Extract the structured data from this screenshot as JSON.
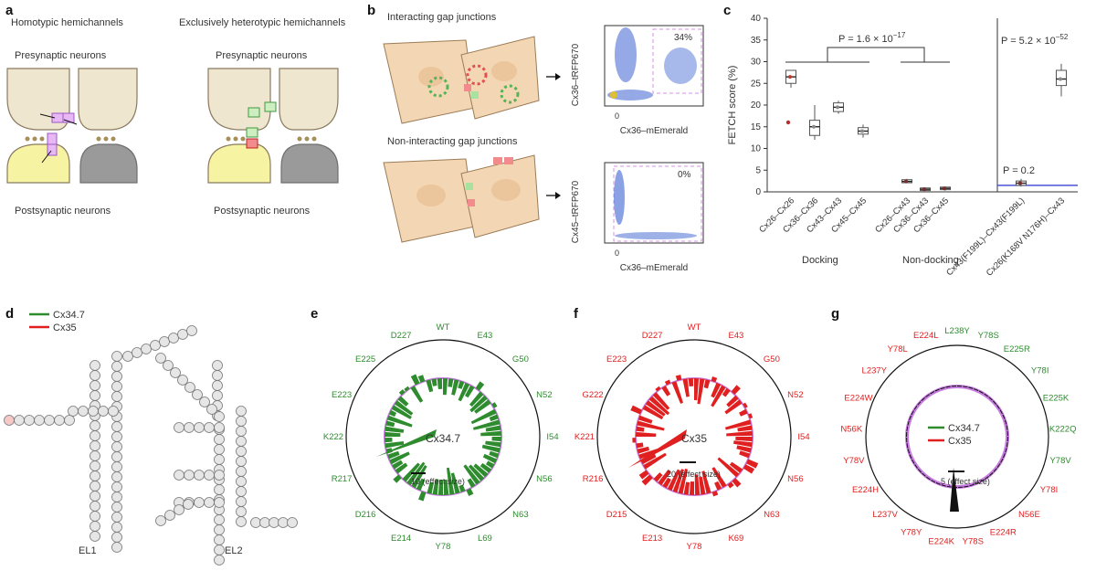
{
  "panels": {
    "a": {
      "letter": "a",
      "left_title": "Homotypic hemichannels",
      "right_title": "Exclusively heterotypic hemichannels",
      "presynaptic_left": "Presynaptic neurons",
      "presynaptic_right": "Presynaptic neurons",
      "postsynaptic_left": "Postsynaptic neurons",
      "postsynaptic_right": "Postsynaptic neurons"
    },
    "b": {
      "letter": "b",
      "top_title": "Interacting gap junctions",
      "bottom_title": "Non-interacting gap junctions",
      "top_ylabel": "Cx36–tRFP670",
      "top_xlabel": "Cx36–mEmerald",
      "top_percent": "34%",
      "bottom_ylabel": "Cx45–tRFP670",
      "bottom_xlabel": "Cx36–mEmerald",
      "bottom_percent": "0%",
      "tick_0": "0",
      "tick_3": "10",
      "tick_4": "10",
      "tick_5": "10",
      "exp_3": "3",
      "exp_4": "4",
      "exp_5": "5"
    },
    "c": {
      "letter": "c"
    },
    "d": {
      "letter": "d",
      "legend_green": "Cx34.7",
      "legend_red": "Cx35",
      "loop1": "EL1",
      "loop2": "EL2"
    },
    "e": {
      "letter": "e",
      "center": "Cx34.7",
      "scale": "10 (effect size)",
      "labels": [
        "WT",
        "E43",
        "G50",
        "N52",
        "I54",
        "N56",
        "N63",
        "L69",
        "Y78",
        "E214",
        "D216",
        "R217",
        "K222",
        "E223",
        "E225",
        "D227"
      ]
    },
    "f": {
      "letter": "f",
      "center": "Cx35",
      "scale": "20 (effect size)",
      "labels": [
        "WT",
        "E43",
        "G50",
        "N52",
        "I54",
        "N56",
        "N63",
        "K69",
        "Y78",
        "E213",
        "D215",
        "R216",
        "K221",
        "G222",
        "E223",
        "D227"
      ]
    },
    "g": {
      "letter": "g",
      "legend_green": "Cx34.7",
      "legend_red": "Cx35",
      "scale": "5 (effect size)",
      "labels_green": [
        "L238Y",
        "Y78S",
        "E225R",
        "Y78I",
        "E225K",
        "K222Q",
        "Y78V"
      ],
      "labels_red": [
        "Y78I",
        "N56E",
        "E224R",
        "Y78S",
        "E224K",
        "Y78Y",
        "L237V",
        "E224H",
        "Y78V",
        "N56K",
        "E224W",
        "L237Y",
        "Y78L",
        "E224L"
      ]
    }
  },
  "chart_data": {
    "type": "scatter",
    "title": "",
    "ylabel": "FETCH score (%)",
    "ylim": [
      0,
      40
    ],
    "yticks": [
      0,
      5,
      10,
      15,
      20,
      25,
      30,
      35,
      40
    ],
    "groups": [
      {
        "category": "Cx26–Cx26",
        "median": 26.5,
        "q1": 25,
        "q3": 28,
        "min": 24,
        "max": 28,
        "outliers": [
          16
        ]
      },
      {
        "category": "Cx36–Cx36",
        "median": 15,
        "q1": 13,
        "q3": 16.5,
        "min": 12,
        "max": 20,
        "outliers": []
      },
      {
        "category": "Cx43–Cx43",
        "median": 19.5,
        "q1": 18.5,
        "q3": 20.5,
        "min": 18,
        "max": 21,
        "outliers": []
      },
      {
        "category": "Cx45–Cx45",
        "median": 14,
        "q1": 13.3,
        "q3": 14.8,
        "min": 12.5,
        "max": 15.5,
        "outliers": []
      },
      {
        "category": "Cx26–Cx43",
        "median": 2.4,
        "q1": 2.1,
        "q3": 2.8,
        "min": 2,
        "max": 3,
        "outliers": []
      },
      {
        "category": "Cx36–Cx43",
        "median": 0.6,
        "q1": 0.3,
        "q3": 0.9,
        "min": 0.2,
        "max": 1,
        "outliers": []
      },
      {
        "category": "Cx36–Cx45",
        "median": 0.8,
        "q1": 0.5,
        "q3": 1.1,
        "min": 0.3,
        "max": 1.2,
        "outliers": []
      },
      {
        "category": "Cx43(F199L)–Cx43(F199L)",
        "median": 2,
        "q1": 1.5,
        "q3": 2.5,
        "min": 1.2,
        "max": 3,
        "outliers": []
      },
      {
        "category": "Cx26(K168V N176H)–Cx43",
        "median": 26,
        "q1": 24.5,
        "q3": 28,
        "min": 22,
        "max": 29.5,
        "outliers": []
      }
    ],
    "baseline_value": 1.5,
    "annotations": {
      "p_dock": "P = 1.6 × 10",
      "p_dock_exp": "−17",
      "p_mut": "P = 5.2 × 10",
      "p_mut_exp": "−52",
      "p_low": "P = 0.2",
      "group_docking": "Docking",
      "group_nondocking": "Non-docking"
    }
  },
  "colors": {
    "green": "#2e8b2e",
    "red": "#e02020",
    "blue_line": "#4a55d4",
    "purple": "#c77ae0",
    "neuron_yellow": "#f6f3a3",
    "neuron_beige": "#efe6cf",
    "neuron_grey": "#9a9a9a",
    "cell": "#f3d7b4"
  }
}
